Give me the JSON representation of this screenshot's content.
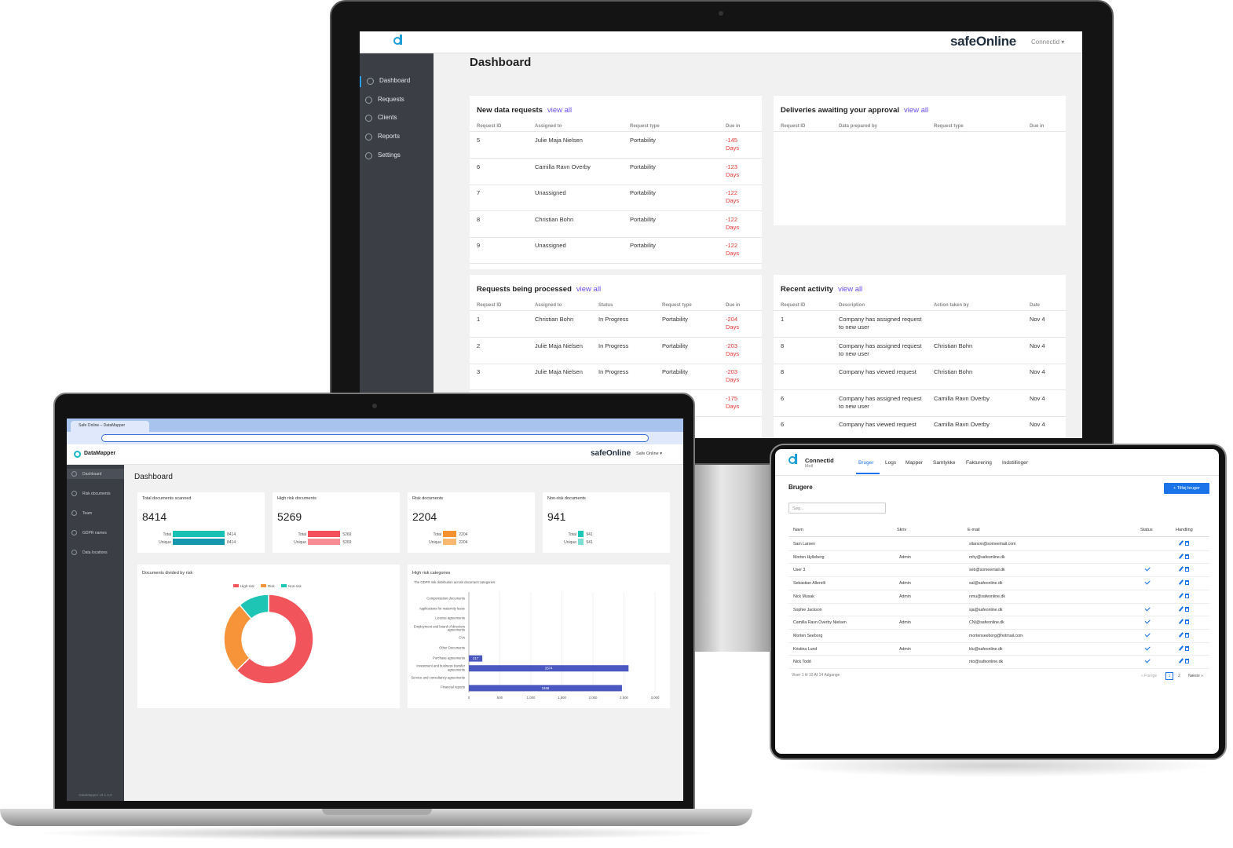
{
  "monitor": {
    "brand": "safeOnline",
    "account": "Connectid",
    "nav": [
      "Dashboard",
      "Requests",
      "Clients",
      "Reports",
      "Settings"
    ],
    "active_nav": 0,
    "title": "Dashboard",
    "panels": [
      {
        "title": "New data requests",
        "link": "view all",
        "columns": [
          "Request ID",
          "Assigned to",
          "Request type",
          "Due in"
        ],
        "rows": [
          [
            "5",
            "Julie Maja Nielsen",
            "Portability",
            "-145 Days"
          ],
          [
            "6",
            "Camilla Ravn Overby",
            "Portability",
            "-123 Days"
          ],
          [
            "7",
            "Unassigned",
            "Portability",
            "-122 Days"
          ],
          [
            "8",
            "Christian Bohn",
            "Portability",
            "-122 Days"
          ],
          [
            "9",
            "Unassigned",
            "Portability",
            "-122 Days"
          ]
        ]
      },
      {
        "title": "Deliveries awaiting your approval",
        "link": "view all",
        "columns": [
          "Request ID",
          "Data prepared by",
          "Request type",
          "Due in"
        ],
        "rows": []
      },
      {
        "title": "Requests being processed",
        "link": "view all",
        "columns": [
          "Request ID",
          "Assigned to",
          "Status",
          "Request type",
          "Due in"
        ],
        "rows": [
          [
            "1",
            "Christian Bohn",
            "In Progress",
            "Portability",
            "-204 Days"
          ],
          [
            "2",
            "Julie Maja Nielsen",
            "In Progress",
            "Portability",
            "-203 Days"
          ],
          [
            "3",
            "Julie Maja Nielsen",
            "In Progress",
            "Portability",
            "-203 Days"
          ],
          [
            null,
            null,
            null,
            null,
            "-175 Days"
          ]
        ]
      },
      {
        "title": "Recent activity",
        "link": "view all",
        "columns": [
          "Request ID",
          "Description",
          "Action taken by",
          "Date"
        ],
        "rows": [
          [
            "1",
            "Company has assigned request to new user",
            null,
            "Nov 4"
          ],
          [
            "8",
            "Company has assigned request to new user",
            "Christian Bohn",
            "Nov 4"
          ],
          [
            "8",
            "Company has viewed request",
            "Christian Bohn",
            "Nov 4"
          ],
          [
            "6",
            "Company has assigned request to new user",
            "Camilla Ravn Overby",
            "Nov 4"
          ],
          [
            "6",
            "Company has viewed request",
            "Camilla Ravn Overby",
            "Nov 4"
          ]
        ]
      }
    ]
  },
  "laptop": {
    "tab": "Safe Online – DataMapper",
    "app": "DataMapper",
    "brand": "safeOnline",
    "account": "Safe Online",
    "nav": [
      "Dashboard",
      "Risk documents",
      "Team",
      "GDPR names",
      "Data locations"
    ],
    "active_nav": 0,
    "version": "DataMapper v0.1.0.0",
    "title": "Dashboard",
    "cards": [
      {
        "title": "Total documents scanned",
        "value": 8414,
        "bars": [
          {
            "label": "Total",
            "value": 8414,
            "color": "#19c1b5"
          },
          {
            "label": "Unique",
            "value": 8414,
            "color": "#1597ad"
          }
        ]
      },
      {
        "title": "High risk documents",
        "value": 5269,
        "bars": [
          {
            "label": "Total",
            "value": 5269,
            "color": "#f2505a"
          },
          {
            "label": "Unique",
            "value": 5269,
            "color": "#f68d94"
          }
        ]
      },
      {
        "title": "Risk documents",
        "value": 2204,
        "bars": [
          {
            "label": "Total",
            "value": 2204,
            "color": "#f5922f"
          },
          {
            "label": "Unique",
            "value": 2204,
            "color": "#f8b86f"
          }
        ]
      },
      {
        "title": "Non-risk documents",
        "value": 941,
        "bars": [
          {
            "label": "Total",
            "value": 941,
            "color": "#1ec7b5"
          },
          {
            "label": "Unique",
            "value": 941,
            "color": "#7fded4"
          }
        ]
      }
    ],
    "donut_chart": {
      "type": "donut",
      "title": "Documents divided by risk",
      "categories": [
        "High-risk",
        "Risk",
        "Non-risk"
      ],
      "values": [
        5269,
        2204,
        941
      ],
      "colors": [
        "#f2545b",
        "#f7943a",
        "#1ec4b4"
      ]
    },
    "bar_chart": {
      "type": "bar",
      "orientation": "horizontal",
      "title": "High risk categories",
      "subtitle": "The GDPR risk distribution across document categories",
      "categories": [
        "Compensation documents",
        "Applications for maternity leave",
        "License agreements",
        "Employment and board of directors agreements",
        "CVs",
        "Other Documents",
        "Purchase agreements",
        "Investment and business transfer agreements",
        "Service and consultancy agreements",
        "Financial reports"
      ],
      "values": [
        0,
        0,
        0,
        0,
        0,
        0,
        217,
        2574,
        0,
        2468
      ],
      "color": "#4a58bf",
      "xlim": [
        0,
        3000
      ],
      "xticks": [
        0,
        500,
        {
          "value": 1000,
          "label": "1,000"
        },
        {
          "value": 1500,
          "label": "1,500"
        },
        {
          "value": 2000,
          "label": "2,000"
        },
        {
          "value": 2500,
          "label": "2,500"
        },
        {
          "value": 3000,
          "label": "3,000"
        }
      ],
      "grid": true
    }
  },
  "tablet": {
    "brand": "Connectid",
    "subbrand": "Moil",
    "tabs": [
      "Bruger",
      "Logs",
      "Mapper",
      "Samtykke",
      "Fakturering",
      "Indstillinger"
    ],
    "active_tab": 0,
    "heading": "Brugere",
    "add_button": "+ Tilføj bruger",
    "search_placeholder": "Søg...",
    "columns": [
      "Navn",
      "Skriv",
      "E-mail",
      "Status",
      "Handling"
    ],
    "rows": [
      {
        "name": "Sam Larsen",
        "role": null,
        "email": "sllarson@someemail.com",
        "status": false
      },
      {
        "name": "Morten Hylleberg",
        "role": "Admin",
        "email": "mhy@safeonline.dk",
        "status": false
      },
      {
        "name": "User 3",
        "role": null,
        "email": "seb@someemail.dk",
        "status": true
      },
      {
        "name": "Sebastian Allerelli",
        "role": "Admin",
        "email": "sal@safeonline.dk",
        "status": true
      },
      {
        "name": "Nick Musak",
        "role": "Admin",
        "email": "nmu@safeonline.dk",
        "status": false
      },
      {
        "name": "Sophie Jackson",
        "role": null,
        "email": "sja@safeonline.dk",
        "status": true
      },
      {
        "name": "Camilla Ravn Overby Nielsen",
        "role": "Admin",
        "email": "CNI@safeonline.dk",
        "status": true
      },
      {
        "name": "Morten Seeborg",
        "role": null,
        "email": "mortenseeborg@hotmail.com",
        "status": true
      },
      {
        "name": "Kristina Lund",
        "role": "Admin",
        "email": "klu@safeonline.dk",
        "status": true
      },
      {
        "name": "Nick Todd",
        "role": null,
        "email": "nto@safeonline.dk",
        "status": true
      }
    ],
    "footer": "Viser 1 til 10 Af 14 Adgange",
    "pagination": [
      "« Forrige",
      "1",
      "2",
      "Næste »"
    ]
  }
}
